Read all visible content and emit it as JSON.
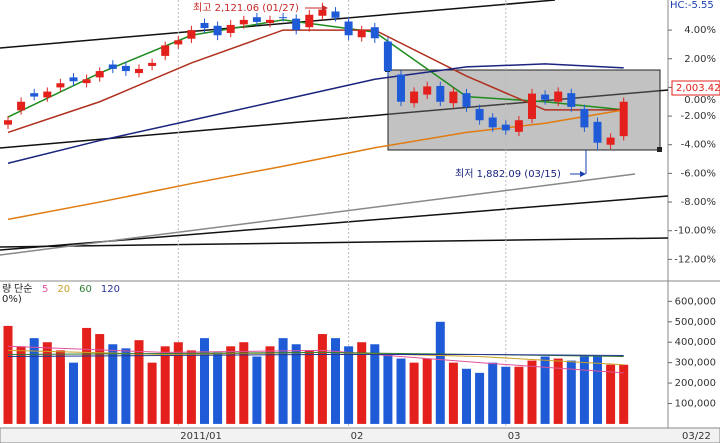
{
  "chart_data": {
    "type": "candlestick",
    "corner_label": "HC:-5.55",
    "price_tag": "2,003.42",
    "high_note": "최고 2,121.06 (01/27)",
    "low_note": "최저 1,882.09 (03/15)",
    "categories": [
      null,
      null,
      null,
      null,
      null,
      null,
      null,
      null,
      null,
      null,
      null,
      null,
      null,
      "2011/01",
      null,
      null,
      null,
      null,
      null,
      null,
      null,
      null,
      null,
      null,
      null,
      null,
      "02",
      null,
      null,
      null,
      null,
      null,
      null,
      null,
      null,
      null,
      null,
      null,
      "03",
      null,
      null,
      null,
      null,
      null,
      null,
      null,
      null,
      null
    ],
    "cursor_date": "03/22",
    "ylim": [
      -13.3,
      6.1
    ],
    "yticks": [
      {
        "value": 4,
        "label": "4.00%"
      },
      {
        "value": 2,
        "label": "2.00%"
      },
      {
        "value": 0,
        "label": "0.00%"
      },
      {
        "value": -2,
        "label": "-2.00%"
      },
      {
        "value": -4,
        "label": "-4.00%"
      },
      {
        "value": -6,
        "label": "-6.00%"
      },
      {
        "value": -8,
        "label": "-8.00%"
      },
      {
        "value": -10,
        "label": "-10.00%"
      },
      {
        "value": -12,
        "label": "-12.00%"
      }
    ],
    "up_color": "#e3201b",
    "down_color": "#1f5bd6",
    "open": [
      -2.6,
      -1.6,
      -0.4,
      -0.7,
      0.0,
      0.7,
      0.3,
      0.7,
      1.6,
      1.5,
      1.0,
      1.5,
      2.2,
      3.0,
      3.4,
      4.5,
      4.3,
      3.8,
      4.4,
      4.9,
      4.5,
      4.9,
      4.8,
      4.2,
      5.0,
      5.3,
      4.6,
      3.5,
      4.2,
      3.2,
      0.9,
      -1.1,
      -0.5,
      0.1,
      -1.1,
      -0.4,
      -1.5,
      -2.1,
      -2.6,
      -3.1,
      -2.2,
      -0.5,
      -1.0,
      -0.4,
      -1.5,
      -2.4,
      -4.0,
      -3.4
    ],
    "high": [
      -2.0,
      -0.7,
      -0.1,
      0.0,
      0.6,
      1.0,
      0.9,
      1.4,
      1.9,
      1.8,
      1.6,
      2.0,
      3.2,
      3.6,
      4.3,
      4.8,
      4.6,
      4.7,
      5.0,
      5.2,
      5.0,
      5.2,
      5.1,
      5.4,
      5.9,
      5.6,
      4.9,
      4.3,
      4.5,
      3.5,
      1.2,
      0.0,
      0.4,
      0.4,
      0.0,
      -0.1,
      -1.2,
      -1.8,
      -2.3,
      -2.0,
      -0.1,
      -0.2,
      0.0,
      -0.1,
      -1.2,
      -2.1,
      -3.2,
      -0.7
    ],
    "low": [
      -2.9,
      -1.9,
      -0.9,
      -1.0,
      -0.3,
      0.1,
      0.0,
      0.4,
      1.0,
      0.8,
      0.7,
      1.2,
      1.9,
      2.7,
      3.1,
      3.8,
      3.3,
      3.5,
      4.1,
      4.3,
      4.2,
      4.6,
      3.7,
      3.9,
      4.7,
      4.6,
      3.3,
      3.2,
      3.1,
      0.8,
      -1.3,
      -1.4,
      -0.8,
      -1.3,
      -1.4,
      -1.7,
      -2.6,
      -3.1,
      -3.3,
      -3.4,
      -2.5,
      -1.2,
      -1.3,
      -1.7,
      -3.1,
      -4.4,
      -4.3,
      -3.7
    ],
    "close": [
      -2.29,
      -1.0,
      -0.64,
      -0.29,
      0.29,
      0.43,
      0.57,
      1.14,
      1.29,
      1.14,
      1.29,
      1.71,
      2.93,
      3.29,
      4.0,
      4.14,
      3.64,
      4.36,
      4.71,
      4.57,
      4.71,
      4.86,
      4.0,
      5.07,
      5.43,
      4.86,
      3.64,
      4.0,
      3.43,
      1.14,
      -1.0,
      -0.29,
      0.07,
      -1.0,
      -0.29,
      -1.36,
      -2.29,
      -2.79,
      -3.0,
      -2.29,
      -0.43,
      -0.86,
      -0.29,
      -1.36,
      -2.79,
      -3.86,
      -3.5,
      -1.0
    ],
    "price_ma": [
      {
        "color": "#1e8c1e",
        "x": [
          0,
          7,
          14,
          21,
          28,
          35,
          41,
          47
        ],
        "values": [
          -2.07,
          1.0,
          3.64,
          4.71,
          3.86,
          -0.64,
          -1.0,
          -1.57
        ]
      },
      {
        "color": "#b0301e",
        "x": [
          0,
          7,
          14,
          21,
          28,
          35,
          41,
          47
        ],
        "values": [
          -3.14,
          -1.0,
          1.71,
          4.0,
          4.0,
          0.79,
          -1.57,
          -1.57
        ]
      },
      {
        "color": "#1a237e",
        "x": [
          0,
          7,
          14,
          21,
          28,
          35,
          41,
          47
        ],
        "values": [
          -5.29,
          -3.71,
          -2.29,
          -0.86,
          0.57,
          1.43,
          1.64,
          1.36
        ]
      },
      {
        "color": "#e07b10",
        "x": [
          0,
          7,
          14,
          21,
          28,
          35,
          41,
          47
        ],
        "values": [
          -9.21,
          -8.0,
          -6.71,
          -5.5,
          -4.21,
          -3.14,
          -2.5,
          -1.57
        ]
      }
    ],
    "volume": {
      "legend_prefix": "량",
      "legend_label": "단순",
      "unit_label": "0%)",
      "ylim": [
        -20000,
        690000
      ],
      "yticks": [
        {
          "value": 600000,
          "label": "600,000"
        },
        {
          "value": 500000,
          "label": "500,000"
        },
        {
          "value": 400000,
          "label": "400,000"
        },
        {
          "value": 300000,
          "label": "300,000"
        },
        {
          "value": 200000,
          "label": "200,000"
        },
        {
          "value": 100000,
          "label": "100,000"
        }
      ],
      "values": [
        480000,
        380000,
        420000,
        400000,
        360000,
        300000,
        470000,
        440000,
        390000,
        370000,
        410000,
        300000,
        380000,
        400000,
        360000,
        420000,
        350000,
        380000,
        400000,
        330000,
        380000,
        420000,
        390000,
        360000,
        440000,
        420000,
        380000,
        400000,
        390000,
        340000,
        320000,
        300000,
        320000,
        500000,
        300000,
        270000,
        250000,
        300000,
        280000,
        280000,
        310000,
        330000,
        320000,
        310000,
        330000,
        330000,
        290000,
        290000
      ],
      "ma": [
        {
          "name": "5",
          "color": "#e0529a",
          "x": [
            0,
            12,
            24,
            36,
            47
          ],
          "values": [
            380000,
            350000,
            360000,
            300000,
            250000
          ]
        },
        {
          "name": "20",
          "color": "#c9a227",
          "x": [
            0,
            12,
            24,
            36,
            47
          ],
          "values": [
            360000,
            340000,
            350000,
            330000,
            290000
          ]
        },
        {
          "name": "60",
          "color": "#2e7d32",
          "x": [
            0,
            12,
            24,
            36,
            47
          ],
          "values": [
            340000,
            345000,
            350000,
            340000,
            330000
          ]
        },
        {
          "name": "120",
          "color": "#283593",
          "x": [
            0,
            12,
            24,
            36,
            47
          ],
          "values": [
            330000,
            335000,
            340000,
            340000,
            335000
          ]
        }
      ]
    }
  }
}
